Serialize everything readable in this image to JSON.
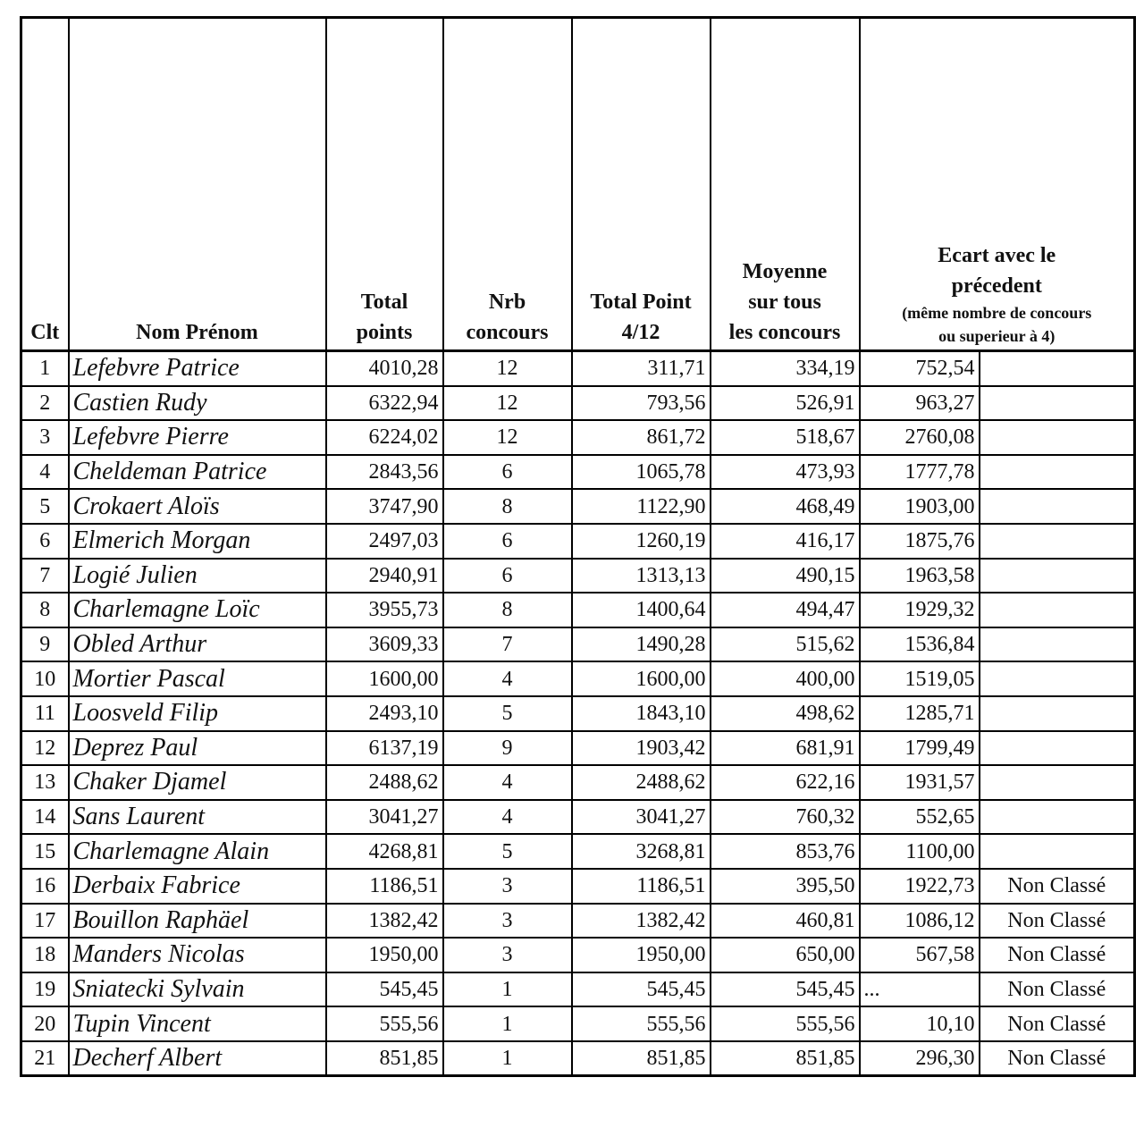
{
  "header": {
    "clt": [
      "Clt"
    ],
    "name": [
      "Nom Prénom"
    ],
    "total": [
      "Total",
      "points"
    ],
    "nrb": [
      "Nrb",
      "concours"
    ],
    "total_4_12": [
      "Total  Point",
      "4/12"
    ],
    "moyenne": [
      "Moyenne",
      "sur tous",
      "les concours"
    ],
    "ecart": {
      "title": [
        "Ecart avec le",
        "précedent"
      ],
      "note": [
        "(même nombre de concours",
        "ou superieur à 4)"
      ]
    }
  },
  "table": {
    "rows": [
      {
        "clt": "1",
        "name": "Lefebvre Patrice",
        "total": "4010,28",
        "nrb": "12",
        "total_4_12": "311,71",
        "moyenne": "334,19",
        "ecart": "752,54"
      },
      {
        "clt": "2",
        "name": "Castien Rudy",
        "total": "6322,94",
        "nrb": "12",
        "total_4_12": "793,56",
        "moyenne": "526,91",
        "ecart": "963,27"
      },
      {
        "clt": "3",
        "name": "Lefebvre Pierre",
        "total": "6224,02",
        "nrb": "12",
        "total_4_12": "861,72",
        "moyenne": "518,67",
        "ecart": "2760,08"
      },
      {
        "clt": "4",
        "name": "Cheldeman Patrice",
        "total": "2843,56",
        "nrb": "6",
        "total_4_12": "1065,78",
        "moyenne": "473,93",
        "ecart": "1777,78"
      },
      {
        "clt": "5",
        "name": "Crokaert Aloïs",
        "total": "3747,90",
        "nrb": "8",
        "total_4_12": "1122,90",
        "moyenne": "468,49",
        "ecart": "1903,00"
      },
      {
        "clt": "6",
        "name": "Elmerich Morgan",
        "total": "2497,03",
        "nrb": "6",
        "total_4_12": "1260,19",
        "moyenne": "416,17",
        "ecart": "1875,76"
      },
      {
        "clt": "7",
        "name": "Logié Julien",
        "total": "2940,91",
        "nrb": "6",
        "total_4_12": "1313,13",
        "moyenne": "490,15",
        "ecart": "1963,58"
      },
      {
        "clt": "8",
        "name": "Charlemagne Loïc",
        "total": "3955,73",
        "nrb": "8",
        "total_4_12": "1400,64",
        "moyenne": "494,47",
        "ecart": "1929,32"
      },
      {
        "clt": "9",
        "name": "Obled Arthur",
        "total": "3609,33",
        "nrb": "7",
        "total_4_12": "1490,28",
        "moyenne": "515,62",
        "ecart": "1536,84"
      },
      {
        "clt": "10",
        "name": "Mortier Pascal",
        "total": "1600,00",
        "nrb": "4",
        "total_4_12": "1600,00",
        "moyenne": "400,00",
        "ecart": "1519,05"
      },
      {
        "clt": "11",
        "name": "Loosveld Filip",
        "total": "2493,10",
        "nrb": "5",
        "total_4_12": "1843,10",
        "moyenne": "498,62",
        "ecart": "1285,71"
      },
      {
        "clt": "12",
        "name": "Deprez Paul",
        "total": "6137,19",
        "nrb": "9",
        "total_4_12": "1903,42",
        "moyenne": "681,91",
        "ecart": "1799,49"
      },
      {
        "clt": "13",
        "name": "Chaker Djamel",
        "total": "2488,62",
        "nrb": "4",
        "total_4_12": "2488,62",
        "moyenne": "622,16",
        "ecart": "1931,57"
      },
      {
        "clt": "14",
        "name": "Sans Laurent",
        "total": "3041,27",
        "nrb": "4",
        "total_4_12": "3041,27",
        "moyenne": "760,32",
        "ecart": "552,65"
      },
      {
        "clt": "15",
        "name": "Charlemagne Alain",
        "total": "4268,81",
        "nrb": "5",
        "total_4_12": "3268,81",
        "moyenne": "853,76",
        "ecart": "1100,00"
      },
      {
        "clt": "16",
        "name": "Derbaix Fabrice",
        "total": "1186,51",
        "nrb": "3",
        "total_4_12": "1186,51",
        "moyenne": "395,50",
        "ecart": "1922,73",
        "status": "Non Classé"
      },
      {
        "clt": "17",
        "name": "Bouillon Raphäel",
        "total": "1382,42",
        "nrb": "3",
        "total_4_12": "1382,42",
        "moyenne": "460,81",
        "ecart": "1086,12",
        "status": "Non Classé"
      },
      {
        "clt": "18",
        "name": "Manders Nicolas",
        "total": "1950,00",
        "nrb": "3",
        "total_4_12": "1950,00",
        "moyenne": "650,00",
        "ecart": "567,58",
        "status": "Non Classé"
      },
      {
        "clt": "19",
        "name": "Sniatecki Sylvain",
        "total": "545,45",
        "nrb": "1",
        "total_4_12": "545,45",
        "moyenne": "545,45",
        "ecart": "...",
        "status": "Non Classé"
      },
      {
        "clt": "20",
        "name": "Tupin Vincent",
        "total": "555,56",
        "nrb": "1",
        "total_4_12": "555,56",
        "moyenne": "555,56",
        "ecart": "10,10",
        "status": "Non Classé"
      },
      {
        "clt": "21",
        "name": "Decherf Albert",
        "total": "851,85",
        "nrb": "1",
        "total_4_12": "851,85",
        "moyenne": "851,85",
        "ecart": "296,30",
        "status": "Non Classé"
      }
    ]
  }
}
